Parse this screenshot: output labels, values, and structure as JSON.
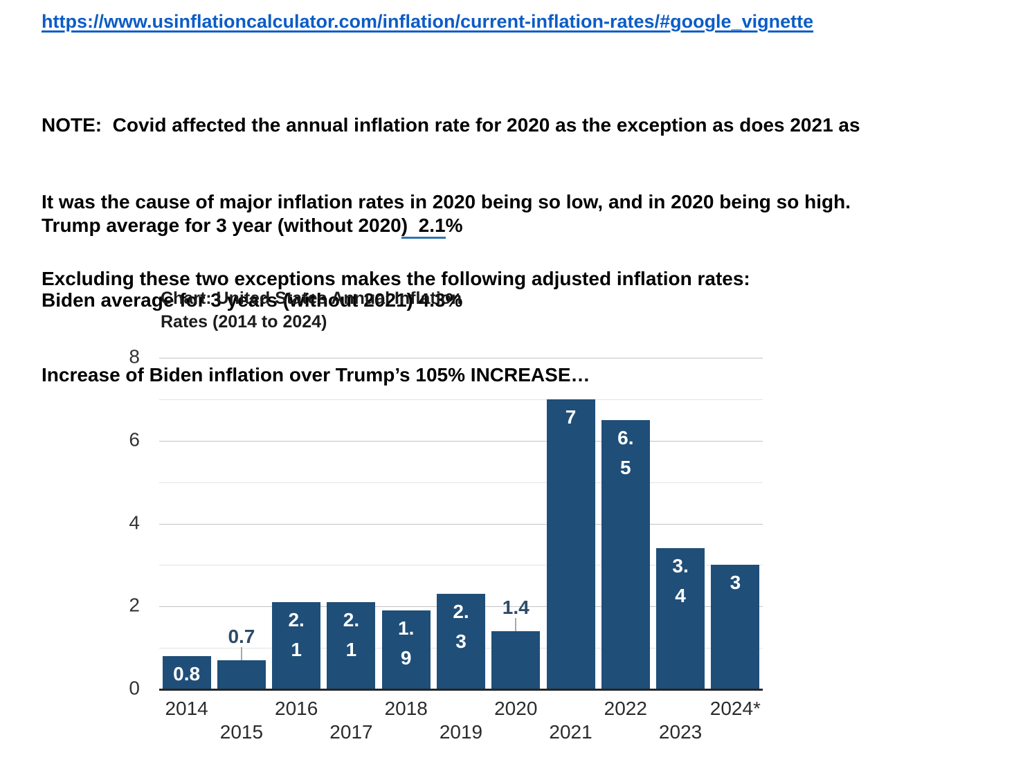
{
  "document": {
    "link_text": "https://www.usinflationcalculator.com/inflation/current-inflation-rates/#google_vignette",
    "link_color": "#0b5cc7",
    "note_lines": [
      "NOTE:  Covid affected the annual inflation rate for 2020 as the exception as does 2021 as",
      "It was the cause of major inflation rates in 2020 being so low, and in 2020 being so high.",
      "Excluding these two exceptions makes the following adjusted inflation rates:"
    ],
    "stats": {
      "trump_prefix": "Trump average for 3 year (without 2020",
      "trump_underlined": ")  2.1",
      "trump_suffix": "%",
      "biden_line": "Biden average for 3 years (without 2021) 4.3%",
      "increase_line": "Increase of Biden inflation over Trump’s 105% INCREASE…",
      "underline_color": "#2e74b5"
    }
  },
  "chart_data": {
    "type": "bar",
    "title": "Chart: United States Annual Inflation Rates (2014 to 2024)",
    "title_lines": [
      "Chart: United States Annual Inflation",
      "Rates (2014 to 2024)"
    ],
    "xlabel": "",
    "ylabel": "",
    "ylim": [
      0,
      8
    ],
    "ytick_labels": [
      "0",
      "2",
      "4",
      "6",
      "8"
    ],
    "ytick_values": [
      0,
      2,
      4,
      6,
      8
    ],
    "gridline_step": 1,
    "grid": true,
    "legend": "none",
    "x_label_layout": "staggered-two-rows",
    "categories": [
      "2014",
      "2015",
      "2016",
      "2017",
      "2018",
      "2019",
      "2020",
      "2021",
      "2022",
      "2023",
      "2024*"
    ],
    "values": [
      0.8,
      0.7,
      2.1,
      2.1,
      1.9,
      2.3,
      1.4,
      7,
      6.5,
      3.4,
      3
    ],
    "bar_labels": [
      {
        "lines": [
          "0.8"
        ],
        "placement": "inside"
      },
      {
        "lines": [
          "0.7"
        ],
        "placement": "outside"
      },
      {
        "lines": [
          "2.",
          "1"
        ],
        "placement": "inside"
      },
      {
        "lines": [
          "2.",
          "1"
        ],
        "placement": "inside"
      },
      {
        "lines": [
          "1.",
          "9"
        ],
        "placement": "inside"
      },
      {
        "lines": [
          "2.",
          "3"
        ],
        "placement": "inside"
      },
      {
        "lines": [
          "1.4"
        ],
        "placement": "outside"
      },
      {
        "lines": [
          "7"
        ],
        "placement": "inside"
      },
      {
        "lines": [
          "6.",
          "5"
        ],
        "placement": "inside"
      },
      {
        "lines": [
          "3.",
          "4"
        ],
        "placement": "inside"
      },
      {
        "lines": [
          "3"
        ],
        "placement": "inside"
      }
    ],
    "colors": {
      "bar": "#1f4e78",
      "inside_label": "#ffffff",
      "outside_label": "#2d4b69",
      "gridline_major": "#c3c3c3",
      "gridline_minor": "#e3e3e3",
      "axis_line": "#262626",
      "tick_label": "#333333",
      "leader_line": "#a8a8a8"
    }
  }
}
